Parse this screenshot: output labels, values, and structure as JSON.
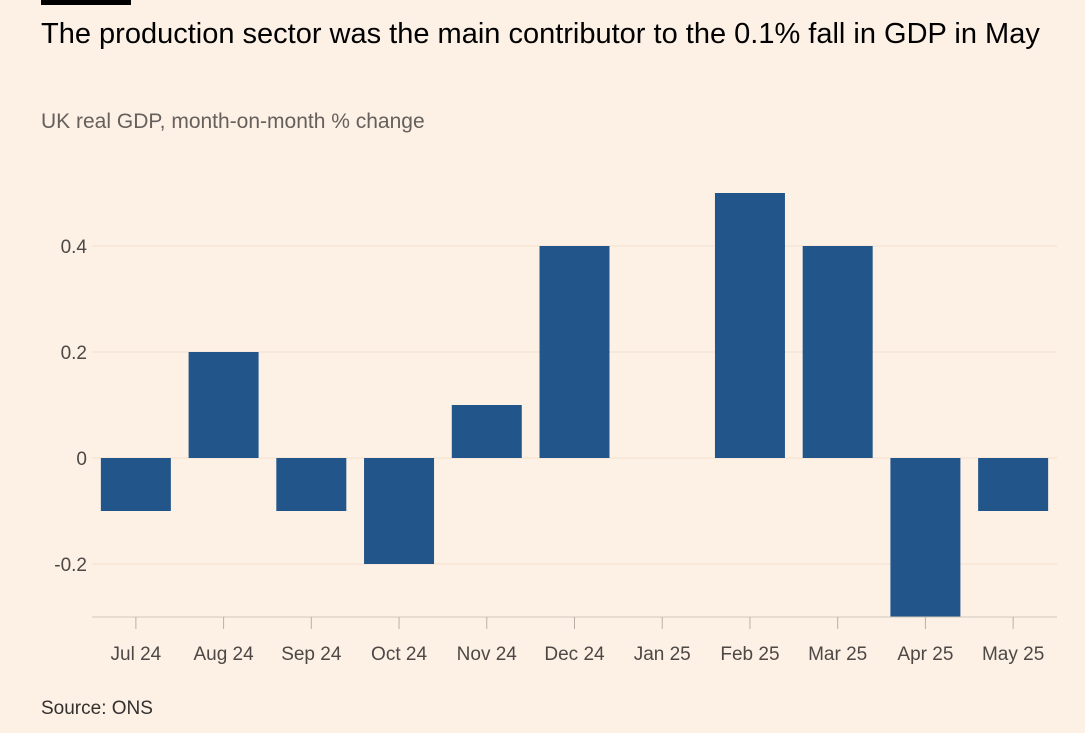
{
  "title": "The production sector was the main contributor to the 0.1% fall in GDP in May",
  "subtitle": "UK real GDP, month-on-month % change",
  "source": "Source: ONS",
  "colors": {
    "background": "#fdf1e6",
    "bar": "#22558a",
    "grid": "#f2dfce"
  },
  "chart_data": {
    "type": "bar",
    "title": "The production sector was the main contributor to the 0.1% fall in GDP in May",
    "subtitle": "UK real GDP, month-on-month % change",
    "categories": [
      "Jul 24",
      "Aug 24",
      "Sep 24",
      "Oct 24",
      "Nov 24",
      "Dec 24",
      "Jan 25",
      "Feb 25",
      "Mar 25",
      "Apr 25",
      "May 25"
    ],
    "values": [
      -0.1,
      0.2,
      -0.1,
      -0.2,
      0.1,
      0.4,
      0.0,
      0.5,
      0.4,
      -0.3,
      -0.1
    ],
    "yticks": [
      -0.2,
      0,
      0.2,
      0.4
    ],
    "ytick_labels": [
      "-0.2",
      "0",
      "0.2",
      "0.4"
    ],
    "ylim": [
      -0.3,
      0.5
    ],
    "xlabel": "",
    "ylabel": "",
    "grid": true
  }
}
